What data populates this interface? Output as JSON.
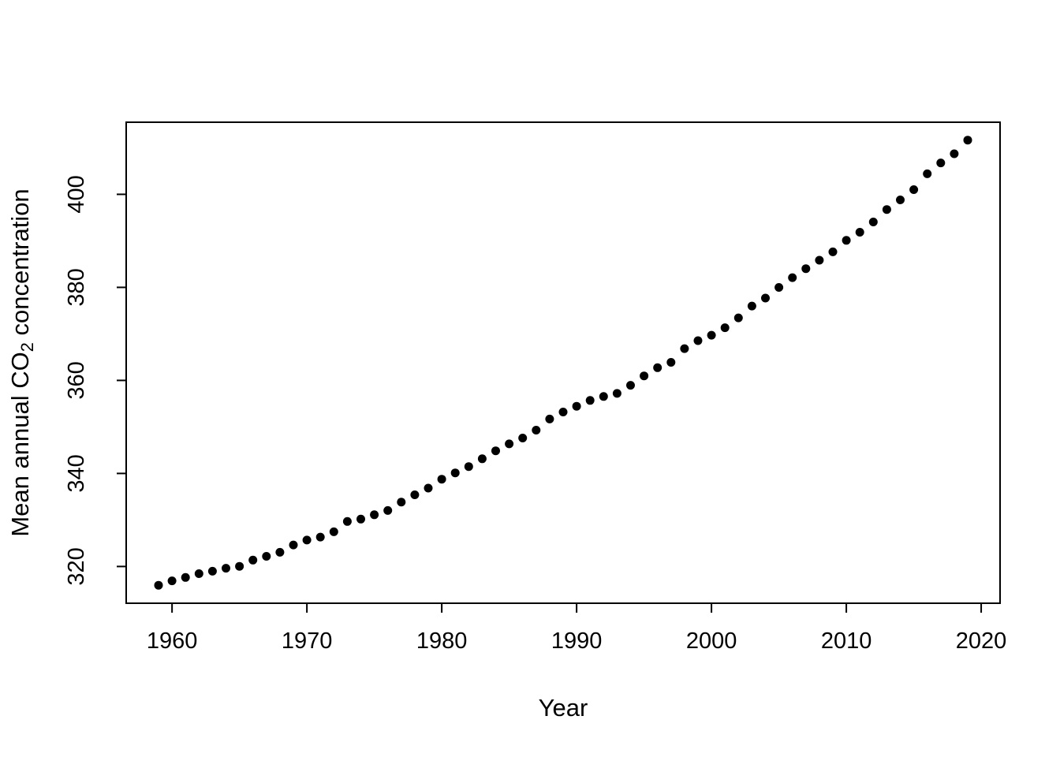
{
  "figure": {
    "background": "#ffffff",
    "foreground": "#000000"
  },
  "chart_data": {
    "type": "scatter",
    "title": "",
    "xlabel": "Year",
    "ylabel": "Mean annual CO₂ concentration",
    "ylabel_parts": {
      "pre": "Mean annual CO",
      "sub": "2",
      "post": " concentration"
    },
    "point_style": "filled-circle",
    "point_color": "#000000",
    "point_radius": 5.5,
    "grid": false,
    "legend": null,
    "x_ticks": [
      "1960",
      "1970",
      "1980",
      "1990",
      "2000",
      "2010",
      "2020"
    ],
    "y_ticks": [
      "320",
      "340",
      "360",
      "380",
      "400"
    ],
    "x_tick_values": [
      1960,
      1970,
      1980,
      1990,
      2000,
      2010,
      2020
    ],
    "y_tick_values": [
      320,
      340,
      360,
      380,
      400
    ],
    "xlim": [
      1956.6,
      2021.4
    ],
    "ylim": [
      312.1,
      415.5
    ],
    "x": [
      1959,
      1960,
      1961,
      1962,
      1963,
      1964,
      1965,
      1966,
      1967,
      1968,
      1969,
      1970,
      1971,
      1972,
      1973,
      1974,
      1975,
      1976,
      1977,
      1978,
      1979,
      1980,
      1981,
      1982,
      1983,
      1984,
      1985,
      1986,
      1987,
      1988,
      1989,
      1990,
      1991,
      1992,
      1993,
      1994,
      1995,
      1996,
      1997,
      1998,
      1999,
      2000,
      2001,
      2002,
      2003,
      2004,
      2005,
      2006,
      2007,
      2008,
      2009,
      2010,
      2011,
      2012,
      2013,
      2014,
      2015,
      2016,
      2017,
      2018,
      2019
    ],
    "y": [
      315.97,
      316.91,
      317.64,
      318.45,
      318.99,
      319.62,
      320.04,
      321.37,
      322.18,
      323.05,
      324.62,
      325.68,
      326.32,
      327.46,
      329.68,
      330.19,
      331.12,
      332.03,
      333.84,
      335.41,
      336.84,
      338.76,
      340.12,
      341.48,
      343.15,
      344.87,
      346.35,
      347.61,
      349.31,
      351.69,
      353.2,
      354.45,
      355.7,
      356.54,
      357.21,
      358.96,
      360.97,
      362.74,
      363.88,
      366.84,
      368.54,
      369.71,
      371.32,
      373.45,
      375.98,
      377.7,
      379.98,
      382.09,
      384.02,
      385.83,
      387.64,
      390.1,
      391.85,
      394.06,
      396.74,
      398.81,
      401.01,
      404.41,
      406.76,
      408.72,
      411.66
    ]
  }
}
